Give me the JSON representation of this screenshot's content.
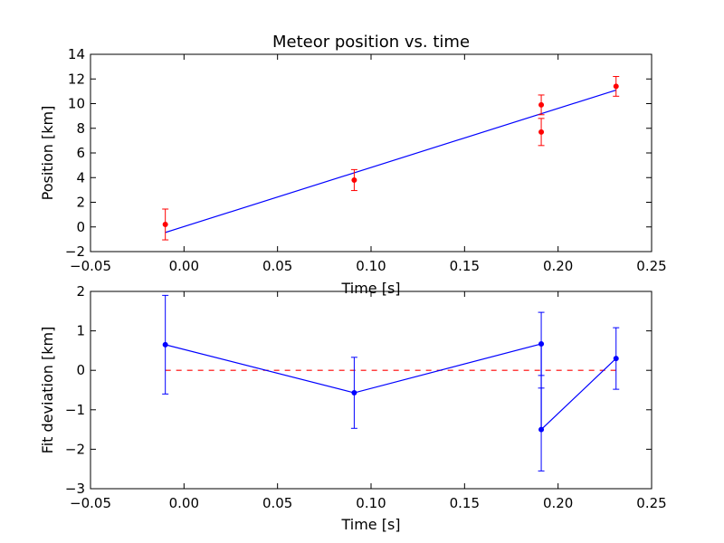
{
  "chart_data": [
    {
      "type": "scatter",
      "title": "Meteor position vs. time",
      "xlabel": "Time [s]",
      "ylabel": "Position [km]",
      "xlim": [
        -0.05,
        0.25
      ],
      "ylim": [
        -2,
        14
      ],
      "xticks": [
        "−0.05",
        "0.00",
        "0.05",
        "0.10",
        "0.15",
        "0.20",
        "0.25"
      ],
      "yticks": [
        "−2",
        "0",
        "2",
        "4",
        "6",
        "8",
        "10",
        "12",
        "14"
      ],
      "grid": false,
      "points": {
        "x": [
          -0.01,
          0.091,
          0.191,
          0.191,
          0.231
        ],
        "y": [
          0.2,
          3.8,
          9.9,
          7.7,
          11.4
        ],
        "yerr": [
          1.25,
          0.85,
          0.8,
          1.1,
          0.8
        ],
        "color": "#ff0000"
      },
      "fit_line": {
        "x": [
          -0.01,
          0.231
        ],
        "y": [
          -0.45,
          11.1
        ],
        "color": "#0000ff"
      }
    },
    {
      "type": "line",
      "xlabel": "Time [s]",
      "ylabel": "Fit deviation [km]",
      "xlim": [
        -0.05,
        0.25
      ],
      "ylim": [
        -3,
        2
      ],
      "xticks": [
        "−0.05",
        "0.00",
        "0.05",
        "0.10",
        "0.15",
        "0.20",
        "0.25"
      ],
      "yticks": [
        "−3",
        "−2",
        "−1",
        "0",
        "1",
        "2"
      ],
      "grid": false,
      "series": {
        "x": [
          -0.01,
          0.091,
          0.191,
          0.191,
          0.231
        ],
        "y": [
          0.65,
          -0.57,
          0.67,
          -1.5,
          0.3
        ],
        "yerr": [
          1.25,
          0.9,
          0.8,
          1.05,
          0.78
        ],
        "color": "#0000ff"
      },
      "zero_line": {
        "y": 0,
        "color": "#ff0000",
        "style": "dashed"
      }
    }
  ]
}
